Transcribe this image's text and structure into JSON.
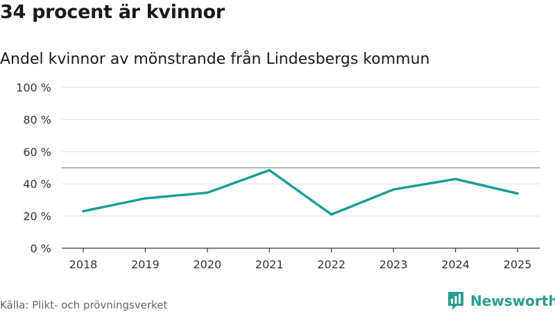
{
  "title": "34 procent är kvinnor",
  "subtitle": "Andel kvinnor av mönstrande från Lindesbergs kommun",
  "source": "Källa: Plikt- och prövningsverket",
  "brand": {
    "name": "Newsworthy",
    "icon": "newsworthy-logo-icon",
    "color": "#2a9d8f"
  },
  "chart_data": {
    "type": "line",
    "title": "34 procent är kvinnor",
    "subtitle": "Andel kvinnor av mönstrande från Lindesbergs kommun",
    "xlabel": "",
    "ylabel": "",
    "x": [
      "2018",
      "2019",
      "2020",
      "2021",
      "2022",
      "2023",
      "2024",
      "2025"
    ],
    "series": [
      {
        "name": "Andel kvinnor",
        "values": [
          23,
          31,
          34.5,
          48.5,
          21,
          36.5,
          43,
          34
        ],
        "color": "#1a9e96"
      }
    ],
    "reference_line": {
      "value": 50,
      "color": "#888888"
    },
    "ylim": [
      0,
      100
    ],
    "y_ticks": [
      0,
      20,
      40,
      60,
      80,
      100
    ],
    "y_tick_labels": [
      "0 %",
      "20 %",
      "40 %",
      "60 %",
      "80 %",
      "100 %"
    ],
    "grid": true,
    "legend": "none"
  }
}
